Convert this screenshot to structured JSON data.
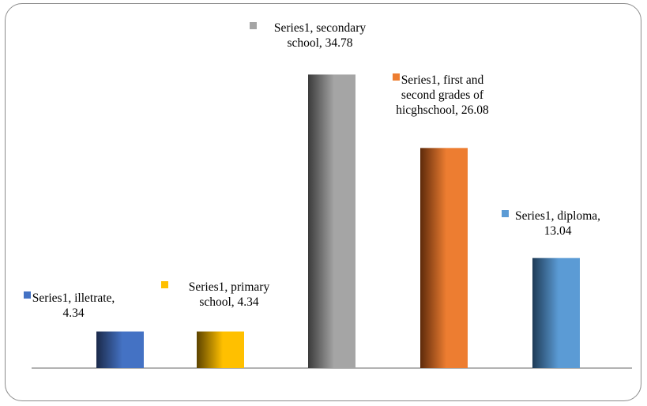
{
  "chart_data": {
    "type": "bar",
    "categories": [
      "illetrate",
      "primary school",
      "secondary school",
      "first and second grades of hicghschool",
      "diploma"
    ],
    "series": [
      {
        "name": "Series1",
        "values": [
          4.34,
          4.34,
          34.78,
          26.08,
          13.04
        ]
      }
    ],
    "ylim": [
      0,
      36.5
    ],
    "grid": false,
    "legend": "none",
    "data_labels": [
      [
        "Series1, illetrate,",
        "4.34"
      ],
      [
        "Series1, primary",
        "school, 4.34"
      ],
      [
        "Series1, secondary",
        "school, 34.78"
      ],
      [
        "Series1, first and",
        "second grades of",
        "hicghschool, 26.08"
      ],
      [
        "Series1, diploma,",
        "13.04"
      ]
    ],
    "colors": [
      "#4472c4",
      "#ffc000",
      "#a5a5a5",
      "#ed7d31",
      "#5b9bd5"
    ],
    "dark_colors": [
      "#1b2a4a",
      "#5c4300",
      "#3b3b3b",
      "#5e2a0a",
      "#1e3b56"
    ]
  }
}
